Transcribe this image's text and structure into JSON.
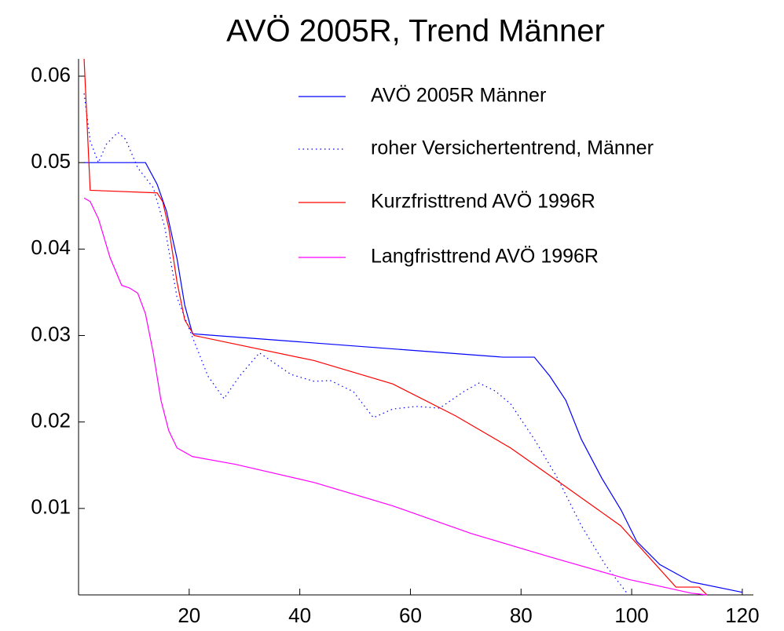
{
  "chart_data": {
    "type": "line",
    "title": "AVÖ 2005R, Trend Männer",
    "xlim": [
      0,
      122
    ],
    "ylim": [
      0,
      0.062
    ],
    "xticks": [
      20,
      40,
      60,
      80,
      100,
      120
    ],
    "yticks": [
      0.01,
      0.02,
      0.03,
      0.04,
      0.05,
      0.06
    ],
    "series": [
      {
        "name": "AVÖ 2005R Männer",
        "color": "#0000ff",
        "dash": false,
        "x": [
          1,
          12.1,
          14.2,
          15.9,
          17.8,
          19.2,
          20.6,
          76.7,
          82.4,
          85.2,
          88.1,
          90.9,
          94.6,
          98.1,
          100.9,
          105.1,
          110.8,
          120
        ],
        "values": [
          0.05,
          0.05,
          0.0475,
          0.0444,
          0.0389,
          0.0335,
          0.0302,
          0.0275,
          0.0275,
          0.0253,
          0.0225,
          0.018,
          0.0135,
          0.0098,
          0.0062,
          0.0035,
          0.0015,
          0.0003
        ]
      },
      {
        "name": "roher Versichertentrend, Männer",
        "color": "#0000ff",
        "dash": true,
        "x": [
          1,
          2.1,
          3.6,
          5,
          7.1,
          8.5,
          10.7,
          13.5,
          15.6,
          17.8,
          20.6,
          23.4,
          26.3,
          29.1,
          32.7,
          38.4,
          42.6,
          45.5,
          49.7,
          53.3,
          56.8,
          61.1,
          65.3,
          69.6,
          72.4,
          75.3,
          78.1,
          82.4,
          86.6,
          90.9,
          95.2,
          99.4
        ],
        "values": [
          0.058,
          0.0525,
          0.05,
          0.0521,
          0.0535,
          0.0527,
          0.0494,
          0.0471,
          0.0425,
          0.0344,
          0.0298,
          0.0253,
          0.0227,
          0.0253,
          0.028,
          0.0255,
          0.0247,
          0.0248,
          0.0235,
          0.0205,
          0.0215,
          0.0218,
          0.0216,
          0.0235,
          0.0245,
          0.0236,
          0.0221,
          0.018,
          0.0135,
          0.008,
          0.0035,
          0
        ]
      },
      {
        "name": "Kurzfristtrend AVÖ 1996R",
        "color": "#ff0000",
        "dash": false,
        "x": [
          1,
          2.1,
          14.2,
          15.2,
          16.3,
          17.8,
          19.2,
          20.9,
          42.6,
          56.8,
          68.2,
          78.1,
          88.1,
          98,
          108,
          112.2,
          113.6
        ],
        "values": [
          0.062,
          0.0468,
          0.0465,
          0.0455,
          0.0425,
          0.0362,
          0.0318,
          0.03,
          0.0271,
          0.0244,
          0.0207,
          0.017,
          0.0125,
          0.008,
          0.0009,
          0.0009,
          0
        ]
      },
      {
        "name": "Langfristtrend AVÖ 1996R",
        "color": "#ff00ff",
        "dash": false,
        "x": [
          1,
          2.1,
          3.6,
          5.7,
          7.8,
          9.2,
          10.7,
          12.1,
          13.5,
          14.9,
          16.3,
          17.8,
          20.6,
          28.4,
          42.6,
          56.8,
          71,
          85.2,
          99.4,
          110.8,
          113.6
        ],
        "values": [
          0.0459,
          0.0455,
          0.0435,
          0.039,
          0.0358,
          0.0355,
          0.0349,
          0.0325,
          0.028,
          0.0225,
          0.019,
          0.017,
          0.016,
          0.0151,
          0.013,
          0.0103,
          0.0071,
          0.0044,
          0.0018,
          0.0002,
          0
        ]
      }
    ]
  }
}
